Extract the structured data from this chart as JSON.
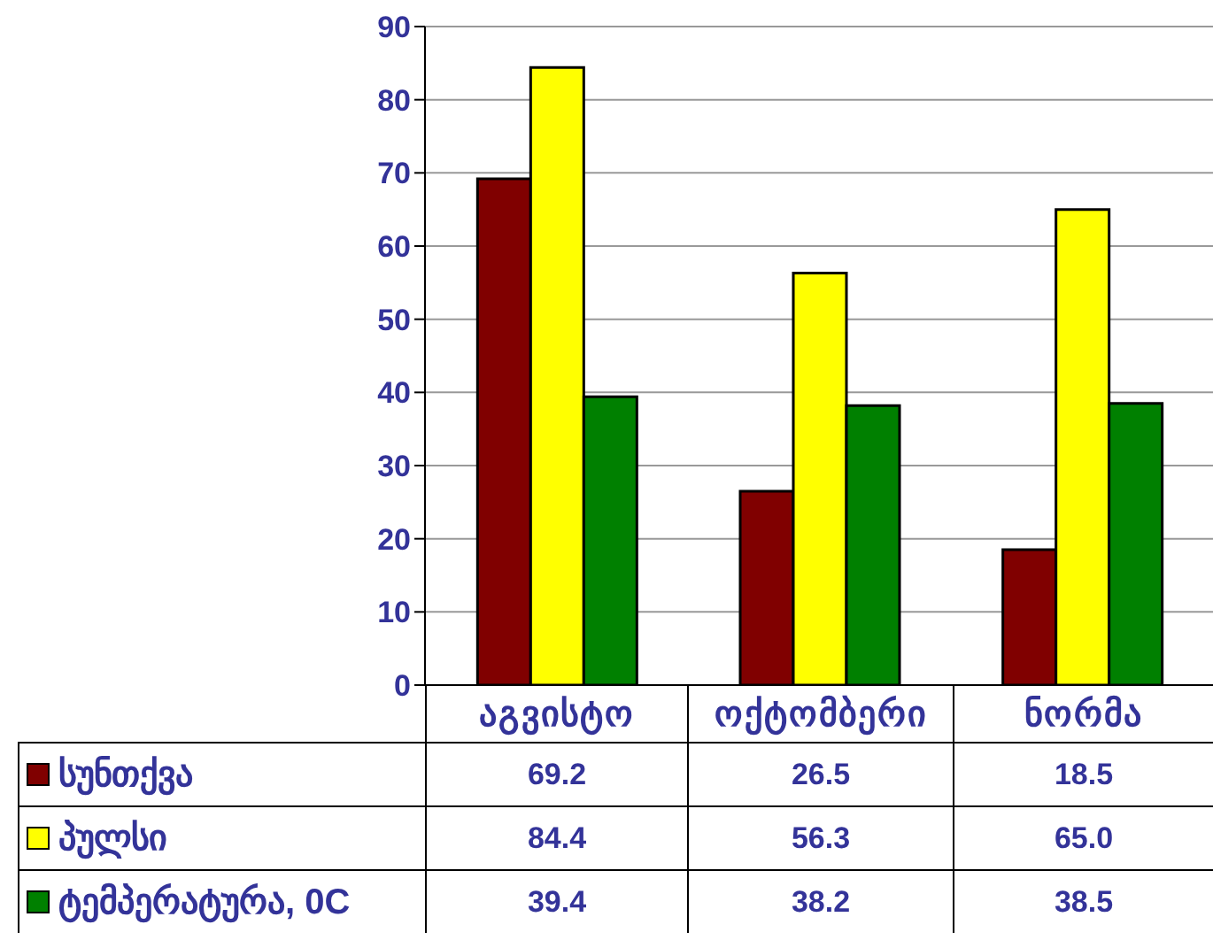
{
  "chart_data": {
    "type": "bar",
    "categories": [
      "აგვისტო",
      "ოქტომბერი",
      "ნორმა"
    ],
    "series": [
      {
        "name": "სუნთქვა",
        "color": "#800000",
        "values": [
          69.2,
          26.5,
          18.5
        ],
        "value_labels": [
          "69.2",
          "26.5",
          "18.5"
        ]
      },
      {
        "name": "პულსი",
        "color": "#ffff00",
        "values": [
          84.4,
          56.3,
          65.0
        ],
        "value_labels": [
          "84.4",
          "56.3",
          "65.0"
        ]
      },
      {
        "name": "ტემპერატურა, 0C",
        "color": "#008000",
        "values": [
          39.4,
          38.2,
          38.5
        ],
        "value_labels": [
          "39.4",
          "38.2",
          "38.5"
        ]
      }
    ],
    "ylim": [
      0,
      90
    ],
    "yticks": [
      0,
      10,
      20,
      30,
      40,
      50,
      60,
      70,
      80,
      90
    ],
    "grid": "y",
    "legend": "bottom left"
  }
}
